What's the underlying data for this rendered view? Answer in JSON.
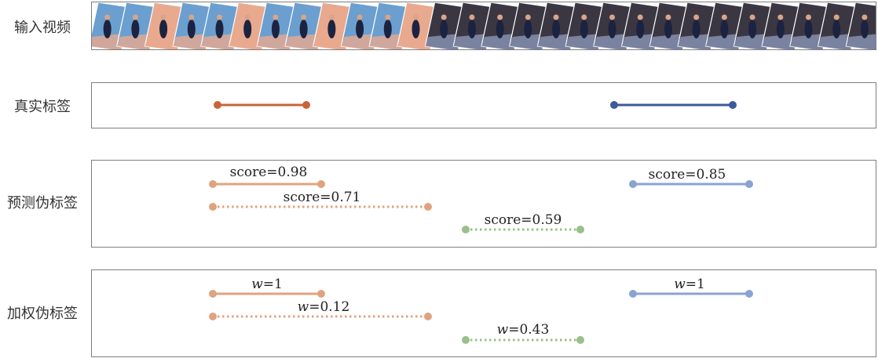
{
  "rows": {
    "input_label": "输入视频",
    "gt_label": "真实标签",
    "pred_label": "预测伪标签",
    "weighted_label": "加权伪标签"
  },
  "colors": {
    "orange_gt": "#c8643a",
    "blue_gt": "#3c5a9c",
    "orange_pred": "#e0a37f",
    "blue_pred": "#8aa3d2",
    "green_pred": "#98c08a",
    "court_light": "#6b9fcf",
    "court_pink": "#e8a98e",
    "court_dark": "#3b3742"
  },
  "video_frames": {
    "count": 28,
    "dark_from_index": 12
  },
  "segments": {
    "gt": [
      {
        "name": "gt-orange",
        "color": "orange_gt",
        "style": "solid"
      },
      {
        "name": "gt-blue",
        "color": "blue_gt",
        "style": "solid"
      }
    ],
    "pred": [
      {
        "name": "pred-orange-high",
        "color": "orange_pred",
        "style": "solid",
        "label": "score=0.98"
      },
      {
        "name": "pred-orange-low",
        "color": "orange_pred",
        "style": "dotted",
        "label": "score=0.71"
      },
      {
        "name": "pred-green",
        "color": "green_pred",
        "style": "dotted",
        "label": "score=0.59"
      },
      {
        "name": "pred-blue",
        "color": "blue_pred",
        "style": "solid",
        "label": "score=0.85"
      }
    ],
    "weighted": [
      {
        "name": "w-orange-high",
        "color": "orange_pred",
        "style": "solid",
        "label_var": "w",
        "label_val": "=1"
      },
      {
        "name": "w-orange-low",
        "color": "orange_pred",
        "style": "dotted",
        "label_var": "w",
        "label_val": "=0.12"
      },
      {
        "name": "w-green",
        "color": "green_pred",
        "style": "dotted",
        "label_var": "w",
        "label_val": "=0.43"
      },
      {
        "name": "w-blue",
        "color": "blue_pred",
        "style": "solid",
        "label_var": "w",
        "label_val": "=1"
      }
    ]
  }
}
